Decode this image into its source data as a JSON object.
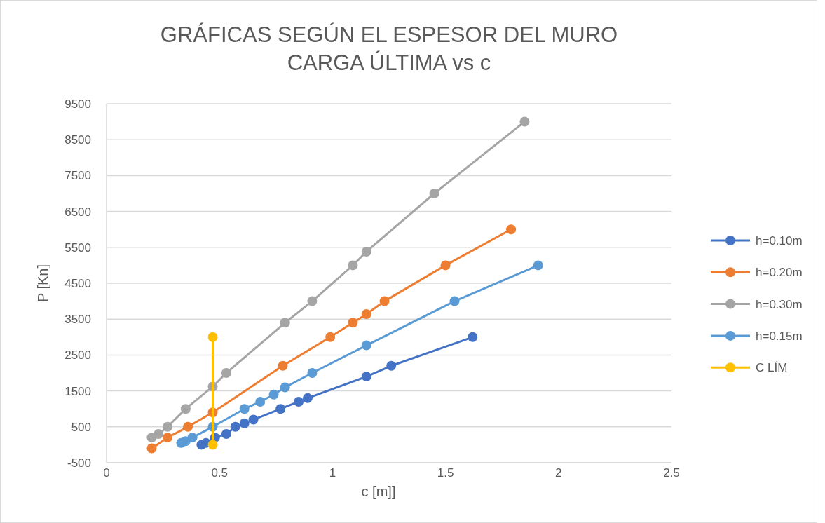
{
  "chart_data": {
    "type": "line",
    "title": "GRÁFICAS SEGÚN EL ESPESOR  DEL MURO\nCARGA ÚLTIMA vs c",
    "xlabel": "c [m]]",
    "ylabel": "P [Kn]",
    "xlim": [
      0,
      2.5
    ],
    "xticks": [
      0,
      0.5,
      1,
      1.5,
      2,
      2.5
    ],
    "ylim": [
      -500,
      9500
    ],
    "yticks": [
      -500,
      500,
      1500,
      2500,
      3500,
      4500,
      5500,
      6500,
      7500,
      8500,
      9500
    ],
    "grid": "y",
    "legend": "right",
    "marker": "circle",
    "line_style": "solid",
    "series": [
      {
        "name": "h=0.10m",
        "color": "#4472c4",
        "x": [
          0.42,
          0.44,
          0.46,
          0.48,
          0.53,
          0.57,
          0.61,
          0.65,
          0.77,
          0.85,
          0.89,
          1.15,
          1.26,
          1.62
        ],
        "values": [
          0,
          50,
          null,
          200,
          300,
          500,
          600,
          700,
          1000,
          1200,
          1300,
          1900,
          2200,
          3000
        ]
      },
      {
        "name": "h=0.20m",
        "color": "#ed7d31",
        "x": [
          0.2,
          0.27,
          0.36,
          0.47,
          0.78,
          0.99,
          1.09,
          1.15,
          1.23,
          1.5,
          1.79
        ],
        "values": [
          -100,
          200,
          500,
          900,
          2200,
          3000,
          3400,
          3640,
          4000,
          5000,
          6000
        ]
      },
      {
        "name": "h=0.30m",
        "color": "#a5a5a5",
        "x": [
          0.2,
          0.23,
          0.27,
          0.35,
          0.47,
          0.53,
          0.79,
          0.91,
          1.09,
          1.15,
          1.45,
          1.85
        ],
        "values": [
          200,
          300,
          500,
          1000,
          1620,
          2000,
          3400,
          4000,
          5000,
          5380,
          7000,
          9000
        ]
      },
      {
        "name": "h=0.15m",
        "color": "#5b9bd5",
        "x": [
          0.33,
          0.35,
          0.37,
          0.38,
          0.47,
          0.61,
          0.68,
          0.74,
          0.79,
          0.91,
          1.15,
          1.54,
          1.91
        ],
        "values": [
          50,
          100,
          null,
          200,
          500,
          1000,
          1200,
          1400,
          1600,
          2000,
          2770,
          4000,
          5000
        ]
      },
      {
        "name": "C LÍM",
        "color": "#ffc000",
        "x": [
          0.47,
          0.47
        ],
        "values": [
          3000,
          0
        ]
      }
    ]
  }
}
